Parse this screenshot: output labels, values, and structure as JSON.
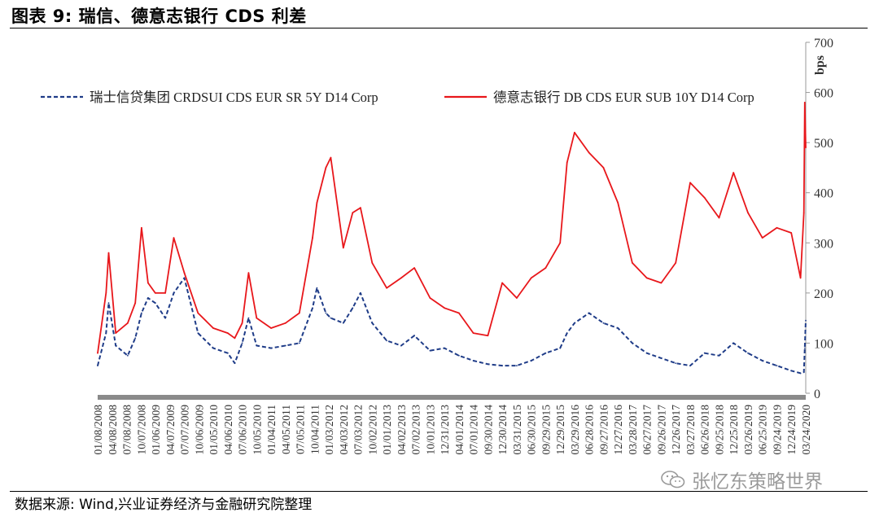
{
  "header": {
    "title": "图表 9:  瑞信、德意志银行 CDS 利差"
  },
  "footer": {
    "source": "数据来源:  Wind,兴业证券经济与金融研究院整理"
  },
  "watermark": {
    "text": "张忆东策略世界",
    "icon": "wechat-icon"
  },
  "colors": {
    "series_ubs": "#1f3c88",
    "series_db": "#e8171b",
    "axis": "#999999"
  },
  "chart_data": {
    "type": "line",
    "ylabel": "bps",
    "ylim": [
      0,
      700
    ],
    "yticks": [
      0,
      100,
      200,
      300,
      400,
      500,
      600,
      700
    ],
    "xlim": [
      "2008-01-08",
      "2020-03-24"
    ],
    "xtick_labels": [
      "01/08/2008",
      "04/08/2008",
      "07/08/2008",
      "10/07/2008",
      "01/06/2009",
      "04/07/2009",
      "07/07/2009",
      "10/06/2009",
      "01/05/2010",
      "04/06/2010",
      "07/06/2010",
      "10/05/2010",
      "01/04/2011",
      "04/05/2011",
      "07/05/2011",
      "10/04/2011",
      "01/03/2012",
      "04/03/2012",
      "07/03/2012",
      "10/02/2012",
      "01/01/2013",
      "04/02/2013",
      "07/02/2013",
      "10/01/2013",
      "12/31/2013",
      "04/01/2014",
      "07/01/2014",
      "09/30/2014",
      "12/30/2014",
      "03/31/2015",
      "06/30/2015",
      "09/29/2015",
      "12/29/2015",
      "03/29/2016",
      "06/28/2016",
      "09/27/2016",
      "12/27/2016",
      "03/28/2017",
      "06/27/2017",
      "09/26/2017",
      "12/26/2017",
      "03/27/2018",
      "06/26/2018",
      "09/25/2018",
      "12/25/2018",
      "03/26/2019",
      "06/25/2019",
      "09/24/2019",
      "12/24/2019",
      "03/24/2020"
    ],
    "grid": false,
    "legend_position": "top",
    "series": [
      {
        "name": "瑞士信贷集团 CRDSUI CDS EUR SR 5Y D14 Corp",
        "style": "dashed",
        "color": "#1f3c88",
        "x": [
          "2008-01-08",
          "2008-03-01",
          "2008-03-17",
          "2008-05-01",
          "2008-07-15",
          "2008-09-01",
          "2008-10-10",
          "2008-11-20",
          "2009-01-05",
          "2009-03-09",
          "2009-05-01",
          "2009-07-07",
          "2009-10-01",
          "2010-01-05",
          "2010-04-06",
          "2010-05-20",
          "2010-07-06",
          "2010-08-15",
          "2010-10-05",
          "2011-01-04",
          "2011-04-05",
          "2011-07-01",
          "2011-09-22",
          "2011-10-20",
          "2011-12-15",
          "2012-01-15",
          "2012-04-03",
          "2012-06-01",
          "2012-07-20",
          "2012-10-02",
          "2013-01-01",
          "2013-04-02",
          "2013-06-24",
          "2013-10-01",
          "2013-12-31",
          "2014-04-01",
          "2014-07-01",
          "2014-09-30",
          "2014-12-30",
          "2015-03-31",
          "2015-06-30",
          "2015-09-29",
          "2015-12-29",
          "2016-02-11",
          "2016-03-29",
          "2016-06-28",
          "2016-09-27",
          "2016-12-27",
          "2017-03-28",
          "2017-06-27",
          "2017-09-26",
          "2017-12-26",
          "2018-03-27",
          "2018-06-26",
          "2018-09-25",
          "2018-12-25",
          "2019-03-26",
          "2019-06-25",
          "2019-09-24",
          "2019-12-24",
          "2020-02-20",
          "2020-03-12",
          "2020-03-18",
          "2020-03-24"
        ],
        "y": [
          55,
          120,
          180,
          95,
          75,
          110,
          160,
          190,
          180,
          150,
          200,
          230,
          120,
          90,
          80,
          60,
          100,
          150,
          95,
          90,
          95,
          100,
          170,
          210,
          160,
          150,
          140,
          170,
          200,
          140,
          105,
          95,
          115,
          85,
          90,
          75,
          65,
          58,
          55,
          55,
          65,
          80,
          90,
          120,
          140,
          160,
          140,
          130,
          100,
          80,
          70,
          60,
          55,
          80,
          75,
          100,
          80,
          65,
          55,
          45,
          40,
          42,
          90,
          145
        ]
      },
      {
        "name": "德意志银行 DB CDS EUR SUB 10Y D14 Corp",
        "style": "solid",
        "color": "#e8171b",
        "x": [
          "2008-01-08",
          "2008-03-01",
          "2008-03-17",
          "2008-05-01",
          "2008-07-15",
          "2008-09-01",
          "2008-10-10",
          "2008-11-20",
          "2009-01-05",
          "2009-03-09",
          "2009-05-01",
          "2009-07-07",
          "2009-10-01",
          "2010-01-05",
          "2010-04-06",
          "2010-05-20",
          "2010-07-06",
          "2010-08-15",
          "2010-10-05",
          "2011-01-04",
          "2011-04-05",
          "2011-07-01",
          "2011-09-22",
          "2011-10-20",
          "2011-12-15",
          "2012-01-15",
          "2012-04-03",
          "2012-06-01",
          "2012-07-20",
          "2012-10-02",
          "2013-01-01",
          "2013-04-02",
          "2013-06-24",
          "2013-10-01",
          "2013-12-31",
          "2014-04-01",
          "2014-07-01",
          "2014-09-30",
          "2014-12-30",
          "2015-03-31",
          "2015-06-30",
          "2015-09-29",
          "2015-12-29",
          "2016-02-11",
          "2016-03-29",
          "2016-06-28",
          "2016-09-27",
          "2016-12-27",
          "2017-03-28",
          "2017-06-27",
          "2017-09-26",
          "2017-12-26",
          "2018-03-27",
          "2018-06-26",
          "2018-09-25",
          "2018-12-25",
          "2019-03-26",
          "2019-06-25",
          "2019-09-24",
          "2019-12-24",
          "2020-02-20",
          "2020-03-12",
          "2020-03-18",
          "2020-03-24"
        ],
        "y": [
          80,
          200,
          280,
          120,
          140,
          180,
          330,
          220,
          200,
          200,
          310,
          240,
          160,
          130,
          120,
          110,
          140,
          240,
          150,
          130,
          140,
          160,
          310,
          380,
          450,
          470,
          290,
          360,
          370,
          260,
          210,
          230,
          250,
          190,
          170,
          160,
          120,
          115,
          220,
          190,
          230,
          250,
          300,
          460,
          520,
          480,
          450,
          380,
          260,
          230,
          220,
          260,
          420,
          390,
          350,
          440,
          360,
          310,
          330,
          320,
          230,
          360,
          580,
          490
        ]
      }
    ]
  }
}
